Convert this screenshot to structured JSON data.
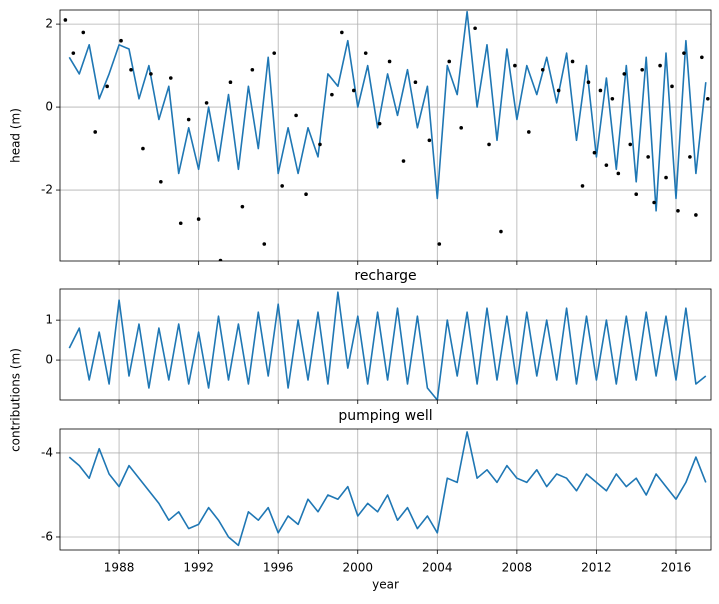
{
  "chart_data": [
    {
      "type": "line",
      "ylabel": "head (m)",
      "x": [
        1985.5,
        1986,
        1986.5,
        1987,
        1987.5,
        1988,
        1988.5,
        1989,
        1989.5,
        1990,
        1990.5,
        1991,
        1991.5,
        1992,
        1992.5,
        1993,
        1993.5,
        1994,
        1994.5,
        1995,
        1995.5,
        1996,
        1996.5,
        1997,
        1997.5,
        1998,
        1998.5,
        1999,
        1999.5,
        2000,
        2000.5,
        2001,
        2001.5,
        2002,
        2002.5,
        2003,
        2003.5,
        2004,
        2004.5,
        2005,
        2005.5,
        2006,
        2006.5,
        2007,
        2007.5,
        2008,
        2008.5,
        2009,
        2009.5,
        2010,
        2010.5,
        2011,
        2011.5,
        2012,
        2012.5,
        2013,
        2013.5,
        2014,
        2014.5,
        2015,
        2015.5,
        2016,
        2016.5,
        2017,
        2017.5
      ],
      "series": [
        {
          "color": "#1f77b4",
          "values": [
            1.2,
            0.8,
            1.5,
            0.2,
            0.8,
            1.5,
            1.4,
            0.2,
            1.0,
            -0.3,
            0.5,
            -1.6,
            -0.5,
            -1.5,
            0.0,
            -1.3,
            0.3,
            -1.5,
            0.5,
            -1.0,
            1.2,
            -1.6,
            -0.5,
            -1.6,
            -0.5,
            -1.2,
            0.8,
            0.5,
            1.6,
            0.0,
            1.0,
            -0.5,
            0.8,
            -0.2,
            0.9,
            -0.5,
            0.5,
            -2.2,
            1.0,
            0.3,
            2.3,
            0.0,
            1.5,
            -0.8,
            1.4,
            -0.3,
            1.0,
            0.3,
            1.2,
            0.1,
            1.3,
            -0.8,
            1.0,
            -1.2,
            0.7,
            -1.5,
            1.0,
            -1.8,
            1.2,
            -2.5,
            1.3,
            -2.2,
            1.6,
            -1.6,
            0.6
          ]
        },
        {
          "type": "scatter",
          "color": "#000000",
          "x": [
            1985.3,
            1985.7,
            1986.2,
            1986.8,
            1987.4,
            1988.1,
            1988.6,
            1989.2,
            1989.6,
            1990.1,
            1990.6,
            1991.1,
            1991.5,
            1992.0,
            1992.4,
            1993.1,
            1993.6,
            1994.2,
            1994.7,
            1995.3,
            1995.8,
            1996.2,
            1996.9,
            1997.4,
            1998.1,
            1998.7,
            1999.2,
            1999.8,
            2000.4,
            2001.1,
            2001.6,
            2002.3,
            2002.9,
            2003.6,
            2004.1,
            2004.6,
            2005.2,
            2005.9,
            2006.6,
            2007.2,
            2007.9,
            2008.6,
            2009.3,
            2010.1,
            2010.8,
            2011.3,
            2011.6,
            2011.9,
            2012.2,
            2012.5,
            2012.8,
            2013.1,
            2013.4,
            2013.7,
            2014.0,
            2014.3,
            2014.6,
            2014.9,
            2015.2,
            2015.5,
            2015.8,
            2016.1,
            2016.4,
            2016.7,
            2017.0,
            2017.3,
            2017.6
          ],
          "values": [
            2.1,
            1.3,
            1.8,
            -0.6,
            0.5,
            1.6,
            0.9,
            -1.0,
            0.8,
            -1.8,
            0.7,
            -2.8,
            -0.3,
            -2.7,
            0.1,
            -3.7,
            0.6,
            -2.4,
            0.9,
            -3.3,
            1.3,
            -1.9,
            -0.2,
            -2.1,
            -0.9,
            0.3,
            1.8,
            0.4,
            1.3,
            -0.4,
            1.1,
            -1.3,
            0.6,
            -0.8,
            -3.3,
            1.1,
            -0.5,
            1.9,
            -0.9,
            -3.0,
            1.0,
            -0.6,
            0.9,
            0.4,
            1.1,
            -1.9,
            0.6,
            -1.1,
            0.4,
            -1.4,
            0.2,
            -1.6,
            0.8,
            -0.9,
            -2.1,
            0.9,
            -1.2,
            -2.3,
            1.0,
            -1.7,
            0.5,
            -2.5,
            1.3,
            -1.2,
            -2.6,
            1.2,
            0.2
          ]
        }
      ],
      "xlim": [
        1985.03,
        2017.76
      ],
      "xticks": [
        1988,
        1992,
        1996,
        2000,
        2004,
        2008,
        2012,
        2016
      ],
      "ylim": [
        -3.71,
        2.34
      ],
      "yticks": [
        -2,
        0,
        2
      ],
      "grid": true
    },
    {
      "type": "line",
      "title": "recharge",
      "ylabel": "contributions (m)",
      "x": [
        1985.5,
        1986,
        1986.5,
        1987,
        1987.5,
        1988,
        1988.5,
        1989,
        1989.5,
        1990,
        1990.5,
        1991,
        1991.5,
        1992,
        1992.5,
        1993,
        1993.5,
        1994,
        1994.5,
        1995,
        1995.5,
        1996,
        1996.5,
        1997,
        1997.5,
        1998,
        1998.5,
        1999,
        1999.5,
        2000,
        2000.5,
        2001,
        2001.5,
        2002,
        2002.5,
        2003,
        2003.5,
        2004,
        2004.5,
        2005,
        2005.5,
        2006,
        2006.5,
        2007,
        2007.5,
        2008,
        2008.5,
        2009,
        2009.5,
        2010,
        2010.5,
        2011,
        2011.5,
        2012,
        2012.5,
        2013,
        2013.5,
        2014,
        2014.5,
        2015,
        2015.5,
        2016,
        2016.5,
        2017,
        2017.5
      ],
      "series": [
        {
          "color": "#1f77b4",
          "values": [
            0.3,
            0.8,
            -0.5,
            0.7,
            -0.6,
            1.5,
            -0.4,
            0.9,
            -0.7,
            0.8,
            -0.5,
            0.9,
            -0.6,
            0.7,
            -0.7,
            1.1,
            -0.5,
            0.9,
            -0.6,
            1.2,
            -0.4,
            1.4,
            -0.7,
            1.0,
            -0.5,
            1.2,
            -0.6,
            1.7,
            -0.2,
            1.1,
            -0.6,
            1.2,
            -0.5,
            1.3,
            -0.6,
            1.1,
            -0.7,
            -1.0,
            1.0,
            -0.4,
            1.2,
            -0.6,
            1.3,
            -0.5,
            1.1,
            -0.6,
            1.2,
            -0.4,
            1.0,
            -0.5,
            1.3,
            -0.6,
            1.1,
            -0.5,
            1.0,
            -0.6,
            1.1,
            -0.5,
            1.2,
            -0.4,
            1.1,
            -0.5,
            1.3,
            -0.6,
            -0.4
          ]
        }
      ],
      "xlim": [
        1985.03,
        2017.76
      ],
      "xticks": [
        1988,
        1992,
        1996,
        2000,
        2004,
        2008,
        2012,
        2016
      ],
      "ylim": [
        -1.0,
        1.78
      ],
      "yticks": [
        0,
        1
      ],
      "grid": true
    },
    {
      "type": "line",
      "title": "pumping well",
      "xlabel": "year",
      "x": [
        1985.5,
        1986,
        1986.5,
        1987,
        1987.5,
        1988,
        1988.5,
        1989,
        1989.5,
        1990,
        1990.5,
        1991,
        1991.5,
        1992,
        1992.5,
        1993,
        1993.5,
        1994,
        1994.5,
        1995,
        1995.5,
        1996,
        1996.5,
        1997,
        1997.5,
        1998,
        1998.5,
        1999,
        1999.5,
        2000,
        2000.5,
        2001,
        2001.5,
        2002,
        2002.5,
        2003,
        2003.5,
        2004,
        2004.5,
        2005,
        2005.5,
        2006,
        2006.5,
        2007,
        2007.5,
        2008,
        2008.5,
        2009,
        2009.5,
        2010,
        2010.5,
        2011,
        2011.5,
        2012,
        2012.5,
        2013,
        2013.5,
        2014,
        2014.5,
        2015,
        2015.5,
        2016,
        2016.5,
        2017,
        2017.5
      ],
      "series": [
        {
          "color": "#1f77b4",
          "values": [
            -4.1,
            -4.3,
            -4.6,
            -3.9,
            -4.5,
            -4.8,
            -4.3,
            -4.6,
            -4.9,
            -5.2,
            -5.6,
            -5.4,
            -5.8,
            -5.7,
            -5.3,
            -5.6,
            -6.0,
            -6.2,
            -5.4,
            -5.6,
            -5.3,
            -5.9,
            -5.5,
            -5.7,
            -5.1,
            -5.4,
            -5.0,
            -5.1,
            -4.8,
            -5.5,
            -5.2,
            -5.4,
            -5.0,
            -5.6,
            -5.3,
            -5.8,
            -5.5,
            -5.9,
            -4.6,
            -4.7,
            -3.5,
            -4.6,
            -4.4,
            -4.7,
            -4.3,
            -4.6,
            -4.7,
            -4.4,
            -4.8,
            -4.5,
            -4.6,
            -4.9,
            -4.5,
            -4.7,
            -4.9,
            -4.5,
            -4.8,
            -4.6,
            -5.0,
            -4.5,
            -4.8,
            -5.1,
            -4.7,
            -4.1,
            -4.7
          ]
        }
      ],
      "xlim": [
        1985.03,
        2017.76
      ],
      "xticks": [
        1988,
        1992,
        1996,
        2000,
        2004,
        2008,
        2012,
        2016
      ],
      "ylim": [
        -6.31,
        -3.43
      ],
      "yticks": [
        -6,
        -4
      ],
      "grid": true
    }
  ]
}
